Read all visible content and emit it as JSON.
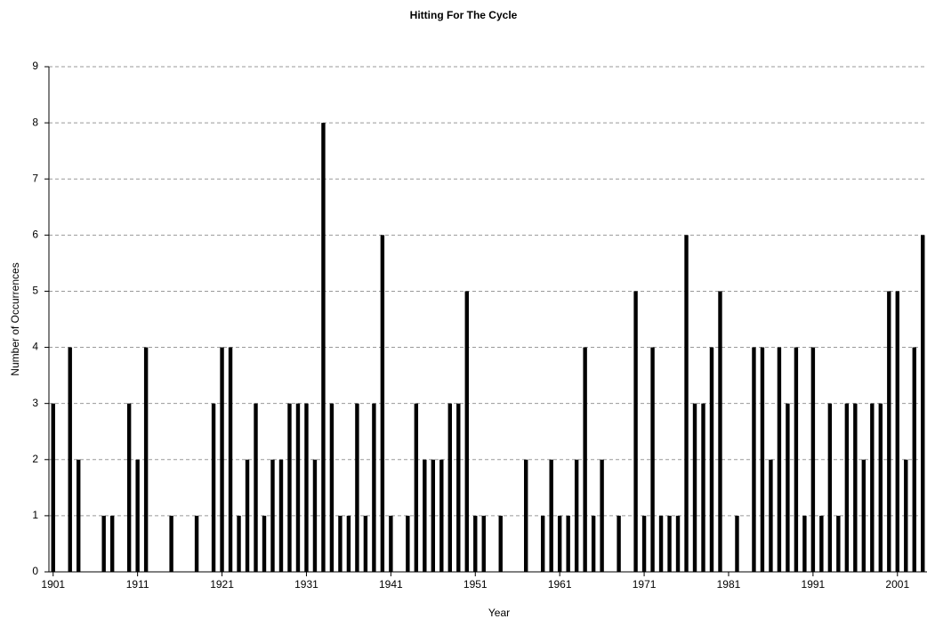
{
  "chart_data": {
    "type": "bar",
    "title": "Hitting For The Cycle",
    "x_label": "Year",
    "y_label": "Number of Occurrences",
    "categories": [
      "1901",
      null,
      null,
      null,
      null,
      null,
      null,
      null,
      null,
      null,
      "1911",
      null,
      null,
      null,
      null,
      null,
      null,
      null,
      null,
      null,
      "1921",
      null,
      null,
      null,
      null,
      null,
      null,
      null,
      null,
      null,
      "1931",
      null,
      null,
      null,
      null,
      null,
      null,
      null,
      null,
      null,
      "1941",
      null,
      null,
      null,
      null,
      null,
      null,
      null,
      null,
      null,
      "1951",
      null,
      null,
      null,
      null,
      null,
      null,
      null,
      null,
      null,
      "1961",
      null,
      null,
      null,
      null,
      null,
      null,
      null,
      null,
      null,
      "1971",
      null,
      null,
      null,
      null,
      null,
      null,
      null,
      null,
      null,
      "1981",
      null,
      null,
      null,
      null,
      null,
      null,
      null,
      null,
      null,
      "1991",
      null,
      null,
      null,
      null,
      null,
      null,
      null,
      null,
      null,
      "2001",
      null,
      null,
      null
    ],
    "values": [
      3,
      0,
      4,
      2,
      0,
      0,
      1,
      1,
      0,
      3,
      2,
      4,
      0,
      0,
      1,
      0,
      0,
      1,
      0,
      3,
      4,
      4,
      1,
      2,
      3,
      1,
      2,
      2,
      3,
      3,
      3,
      2,
      8,
      3,
      1,
      1,
      3,
      1,
      3,
      6,
      1,
      0,
      1,
      3,
      2,
      2,
      2,
      3,
      3,
      5,
      1,
      1,
      0,
      1,
      0,
      0,
      2,
      0,
      1,
      2,
      1,
      1,
      2,
      4,
      1,
      2,
      0,
      1,
      0,
      5,
      1,
      4,
      1,
      1,
      1,
      6,
      3,
      3,
      4,
      5,
      0,
      1,
      0,
      4,
      4,
      2,
      4,
      3,
      4,
      1,
      4,
      1,
      3,
      1,
      3,
      3,
      2,
      3,
      3,
      5,
      5,
      2,
      4,
      6
    ],
    "color": "#000000",
    "ylim": [
      0,
      9
    ],
    "yticks": [
      0,
      1,
      2,
      3,
      4,
      5,
      6,
      7,
      8,
      9
    ],
    "grid": true
  }
}
